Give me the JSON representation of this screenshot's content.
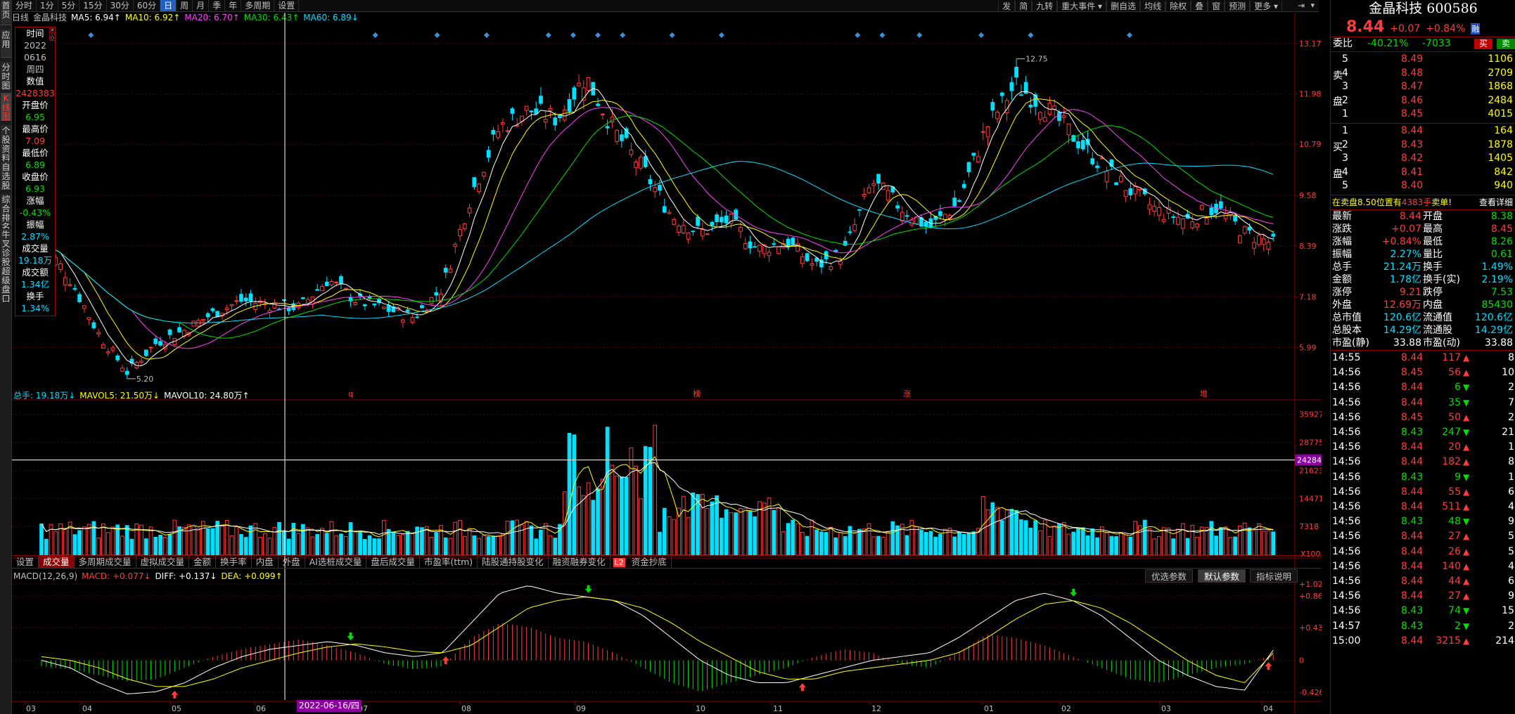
{
  "side_tabs": [
    "首页",
    "应用",
    "分时图",
    "K线图",
    "个股资料",
    "自选股",
    "综合排名",
    "牛叉诊股",
    "超级盘口"
  ],
  "toolbar": {
    "periods": [
      "分时",
      "1分",
      "5分",
      "15分",
      "30分",
      "60分",
      "日",
      "周",
      "月",
      "季",
      "年",
      "多周期",
      "设置"
    ],
    "selected": "日",
    "right_tools": [
      "发",
      "简",
      "九转",
      "重大事件 ▾",
      "删自选",
      "均线",
      "除权",
      "叠",
      "窗",
      "预测",
      "更多 ▾"
    ]
  },
  "ma_legend": {
    "period": "日线",
    "name": "金晶科技",
    "items": [
      {
        "label": "MA5: 6.94↑",
        "color": "#ffffff"
      },
      {
        "label": "MA10: 6.92↑",
        "color": "#ffff00"
      },
      {
        "label": "MA20: 6.70↑",
        "color": "#ff40ff"
      },
      {
        "label": "MA30: 6.43↑",
        "color": "#00e000"
      },
      {
        "label": "MA60: 6.89↓",
        "color": "#00e0ff"
      }
    ]
  },
  "data_window": [
    {
      "text": "时间",
      "color": "#ffffff"
    },
    {
      "text": "2022",
      "color": "#c0c0c0"
    },
    {
      "text": "0616",
      "color": "#c0c0c0"
    },
    {
      "text": "周四",
      "color": "#c0c0c0"
    },
    {
      "text": "数值",
      "color": "#ffffff"
    },
    {
      "text": "2428383",
      "color": "#ff3c3c"
    },
    {
      "text": "开盘价",
      "color": "#ffffff"
    },
    {
      "text": "6.95",
      "color": "#00e000"
    },
    {
      "text": "最高价",
      "color": "#ffffff"
    },
    {
      "text": "7.09",
      "color": "#ff3c3c"
    },
    {
      "text": "最低价",
      "color": "#ffffff"
    },
    {
      "text": "6.89",
      "color": "#00e000"
    },
    {
      "text": "收盘价",
      "color": "#ffffff"
    },
    {
      "text": "6.93",
      "color": "#00e000"
    },
    {
      "text": "涨幅",
      "color": "#ffffff"
    },
    {
      "text": "-0.43%",
      "color": "#00e000"
    },
    {
      "text": "振幅",
      "color": "#ffffff"
    },
    {
      "text": "2.87%",
      "color": "#00e0ff"
    },
    {
      "text": "成交量",
      "color": "#ffffff"
    },
    {
      "text": "19.18万",
      "color": "#00e0ff"
    },
    {
      "text": "成交额",
      "color": "#ffffff"
    },
    {
      "text": "1.34亿",
      "color": "#00e0ff"
    },
    {
      "text": "换手",
      "color": "#ffffff"
    },
    {
      "text": "1.34%",
      "color": "#00e0ff"
    }
  ],
  "price_axis": [
    "13.17",
    "11.98",
    "10.79",
    "9.58",
    "8.39",
    "7.18",
    "5.99"
  ],
  "price_marks": {
    "high": "12.75",
    "low": "5.20"
  },
  "event_marks": [
    "q",
    "榜",
    "涨",
    "增"
  ],
  "vol_legend": {
    "items": [
      {
        "label": "总手: 19.18万↓",
        "color": "#00e0ff"
      },
      {
        "label": "MAVOL5: 21.50万↓",
        "color": "#ffff00"
      },
      {
        "label": "MAVOL10: 24.80万↑",
        "color": "#ffffff"
      }
    ]
  },
  "vol_axis": [
    "35927",
    "28775",
    "21623",
    "14471",
    "7318",
    "X100"
  ],
  "vol_cursor": "24284",
  "ind_tabs": [
    "设置",
    "成交量",
    "多周期成交量",
    "虚拟成交量",
    "金额",
    "换手率",
    "内盘",
    "外盘",
    "AI选桩成交量",
    "盘后成交量",
    "市盈率(ttm)",
    "陆股通持股变化",
    "融资融券变化",
    "资金抄底"
  ],
  "ind_selected": "成交量",
  "ind_badge": "L2",
  "macd_buttons": [
    "优选参数",
    "默认参数",
    "指标说明"
  ],
  "macd_selected_button": "默认参数",
  "macd_legend": {
    "items": [
      {
        "label": "MACD(12,26,9)",
        "color": "#c0c0c0"
      },
      {
        "label": "MACD: +0.077↓",
        "color": "#ff3c3c"
      },
      {
        "label": "DIFF: +0.137↓",
        "color": "#ffffff"
      },
      {
        "label": "DEA: +0.099↑",
        "color": "#ffff00"
      }
    ]
  },
  "macd_axis": [
    "+1.02",
    "+0.863",
    "+0.437",
    "0",
    "-0.426"
  ],
  "date_axis": [
    "03",
    "04",
    "05",
    "06",
    "07",
    "08",
    "09",
    "10",
    "11",
    "12",
    "01",
    "02",
    "03",
    "04"
  ],
  "cursor_date": "2022-06-16/四",
  "quote": {
    "name": "金晶科技 600586",
    "price": "8.44",
    "change": "+0.07",
    "change_pct": "+0.84%",
    "tag": "融",
    "weibi_label": "委比",
    "weibi": "-40.21%",
    "weicha": "-7033",
    "buy_btn": "买",
    "sell_btn": "卖",
    "sell": [
      {
        "lv": "5",
        "price": "8.49",
        "vol": "1106"
      },
      {
        "lv": "4",
        "price": "8.48",
        "vol": "2709"
      },
      {
        "lv": "3",
        "price": "8.47",
        "vol": "1868"
      },
      {
        "lv": "2",
        "price": "8.46",
        "vol": "2484"
      },
      {
        "lv": "1",
        "price": "8.45",
        "vol": "4015"
      }
    ],
    "sell_side": [
      "卖",
      "盘"
    ],
    "buy": [
      {
        "lv": "1",
        "price": "8.44",
        "vol": "164"
      },
      {
        "lv": "2",
        "price": "8.43",
        "vol": "1878"
      },
      {
        "lv": "3",
        "price": "8.42",
        "vol": "1405"
      },
      {
        "lv": "4",
        "price": "8.41",
        "vol": "842"
      },
      {
        "lv": "5",
        "price": "8.40",
        "vol": "940"
      }
    ],
    "buy_side": [
      "买",
      "盘"
    ],
    "notice": {
      "pre": "在卖盘",
      "price": "8.50",
      "mid": "位置有",
      "vol": "4383手",
      "post": "卖单!",
      "link": "查看详细"
    },
    "stats": [
      {
        "l1": "最新",
        "v1": "8.44",
        "c1": "#ff3c3c",
        "l2": "开盘",
        "v2": "8.38",
        "c2": "#00e000"
      },
      {
        "l1": "涨跌",
        "v1": "+0.07",
        "c1": "#ff3c3c",
        "l2": "最高",
        "v2": "8.45",
        "c2": "#ff3c3c"
      },
      {
        "l1": "涨幅",
        "v1": "+0.84%",
        "c1": "#ff3c3c",
        "l2": "最低",
        "v2": "8.26",
        "c2": "#00e000"
      },
      {
        "l1": "振幅",
        "v1": "2.27%",
        "c1": "#00e0ff",
        "l2": "量比",
        "v2": "0.61",
        "c2": "#00e000"
      },
      {
        "l1": "总手",
        "v1": "21.24万",
        "c1": "#00e0ff",
        "l2": "换手",
        "v2": "1.49%",
        "c2": "#00e0ff"
      },
      {
        "l1": "金额",
        "v1": "1.78亿",
        "c1": "#00e0ff",
        "l2": "换手(实)",
        "v2": "2.19%",
        "c2": "#00e0ff"
      },
      {
        "l1": "涨停",
        "v1": "9.21",
        "c1": "#ff3c3c",
        "l2": "跌停",
        "v2": "7.53",
        "c2": "#00e000"
      },
      {
        "l1": "外盘",
        "v1": "12.69万",
        "c1": "#ff3c3c",
        "l2": "内盘",
        "v2": "85430",
        "c2": "#00e000"
      },
      {
        "l1": "总市值",
        "v1": "120.6亿",
        "c1": "#00e0ff",
        "l2": "流通值",
        "v2": "120.6亿",
        "c2": "#00e0ff"
      },
      {
        "l1": "总股本",
        "v1": "14.29亿",
        "c1": "#00e0ff",
        "l2": "流通股",
        "v2": "14.29亿",
        "c2": "#00e0ff"
      },
      {
        "l1": "市盈(静)",
        "v1": "33.88",
        "c1": "#ffffff",
        "l2": "市盈(动)",
        "v2": "33.88",
        "c2": "#ffffff"
      }
    ],
    "ticks": [
      {
        "t": "14:55",
        "p": "8.44",
        "pc": "#ff3c3c",
        "v": "117",
        "d": "up",
        "n": "8"
      },
      {
        "t": "14:56",
        "p": "8.45",
        "pc": "#ff3c3c",
        "v": "56",
        "d": "up",
        "n": "10"
      },
      {
        "t": "14:56",
        "p": "8.44",
        "pc": "#ff3c3c",
        "v": "6",
        "d": "down",
        "n": "2"
      },
      {
        "t": "14:56",
        "p": "8.44",
        "pc": "#ff3c3c",
        "v": "35",
        "d": "down",
        "n": "7"
      },
      {
        "t": "14:56",
        "p": "8.45",
        "pc": "#ff3c3c",
        "v": "50",
        "d": "up",
        "n": "2"
      },
      {
        "t": "14:56",
        "p": "8.43",
        "pc": "#00e000",
        "v": "247",
        "d": "down",
        "n": "21"
      },
      {
        "t": "14:56",
        "p": "8.44",
        "pc": "#ff3c3c",
        "v": "20",
        "d": "up",
        "n": "1"
      },
      {
        "t": "14:56",
        "p": "8.44",
        "pc": "#ff3c3c",
        "v": "182",
        "d": "up",
        "n": "8"
      },
      {
        "t": "14:56",
        "p": "8.43",
        "pc": "#00e000",
        "v": "9",
        "d": "down",
        "n": "1"
      },
      {
        "t": "14:56",
        "p": "8.44",
        "pc": "#ff3c3c",
        "v": "55",
        "d": "up",
        "n": "6"
      },
      {
        "t": "14:56",
        "p": "8.44",
        "pc": "#ff3c3c",
        "v": "511",
        "d": "up",
        "n": "4"
      },
      {
        "t": "14:56",
        "p": "8.43",
        "pc": "#00e000",
        "v": "48",
        "d": "down",
        "n": "9"
      },
      {
        "t": "14:56",
        "p": "8.44",
        "pc": "#ff3c3c",
        "v": "27",
        "d": "up",
        "n": "5"
      },
      {
        "t": "14:56",
        "p": "8.44",
        "pc": "#ff3c3c",
        "v": "26",
        "d": "up",
        "n": "5"
      },
      {
        "t": "14:56",
        "p": "8.44",
        "pc": "#ff3c3c",
        "v": "140",
        "d": "up",
        "n": "4"
      },
      {
        "t": "14:56",
        "p": "8.44",
        "pc": "#ff3c3c",
        "v": "44",
        "d": "up",
        "n": "6"
      },
      {
        "t": "14:56",
        "p": "8.44",
        "pc": "#ff3c3c",
        "v": "27",
        "d": "up",
        "n": "9"
      },
      {
        "t": "14:56",
        "p": "8.43",
        "pc": "#00e000",
        "v": "74",
        "d": "down",
        "n": "15"
      },
      {
        "t": "14:57",
        "p": "8.43",
        "pc": "#00e000",
        "v": "2",
        "d": "down",
        "n": "2"
      },
      {
        "t": "15:00",
        "p": "8.44",
        "pc": "#ff3c3c",
        "v": "3215",
        "d": "up",
        "n": "214"
      }
    ]
  },
  "colors": {
    "up": "#ff3c3c",
    "down": "#00e0ff",
    "down_num": "#00e000",
    "frame": "#8c0000"
  },
  "chart_data": {
    "type": "candlestick",
    "price_ylim": [
      4.8,
      13.6
    ],
    "vol_ylim": [
      0,
      38000
    ],
    "macd_ylim": [
      -0.53,
      1.05
    ],
    "candles_ohlc_sample": [
      [
        8.3,
        8.7,
        8.1,
        8.5
      ],
      [
        8.5,
        8.6,
        7.5,
        7.6
      ],
      [
        7.6,
        7.7,
        6.2,
        6.3
      ],
      [
        6.3,
        6.4,
        5.2,
        5.4
      ],
      [
        5.4,
        6.2,
        5.3,
        6.1
      ],
      [
        6.1,
        6.5,
        6.0,
        6.4
      ],
      [
        6.4,
        6.9,
        6.3,
        6.8
      ],
      [
        6.8,
        7.3,
        6.7,
        7.1
      ],
      [
        7.1,
        7.3,
        6.9,
        7.0
      ],
      [
        6.95,
        7.09,
        6.89,
        6.93
      ],
      [
        6.9,
        7.9,
        6.8,
        7.6
      ],
      [
        7.6,
        7.7,
        7.0,
        7.1
      ],
      [
        7.0,
        7.2,
        6.8,
        6.9
      ],
      [
        6.8,
        6.9,
        6.6,
        6.7
      ],
      [
        6.7,
        7.5,
        6.6,
        7.4
      ],
      [
        7.4,
        9.8,
        7.3,
        9.6
      ],
      [
        9.6,
        11.5,
        9.4,
        11.2
      ],
      [
        11.2,
        11.9,
        10.8,
        11.6
      ],
      [
        11.6,
        12.1,
        11.2,
        11.4
      ],
      [
        11.4,
        12.75,
        11.3,
        12.4
      ],
      [
        12.4,
        12.5,
        10.9,
        11.1
      ],
      [
        11.1,
        11.2,
        10.0,
        10.2
      ],
      [
        10.2,
        10.4,
        9.0,
        9.1
      ],
      [
        9.1,
        9.3,
        8.4,
        8.7
      ],
      [
        8.7,
        9.2,
        8.5,
        9.0
      ],
      [
        9.0,
        9.1,
        8.2,
        8.3
      ],
      [
        8.3,
        8.7,
        8.0,
        8.5
      ],
      [
        8.5,
        8.6,
        7.8,
        7.9
      ],
      [
        7.9,
        8.4,
        7.7,
        8.2
      ],
      [
        8.2,
        10.1,
        8.1,
        9.9
      ],
      [
        9.9,
        10.0,
        9.1,
        9.3
      ],
      [
        9.3,
        9.4,
        8.6,
        8.8
      ],
      [
        8.8,
        9.5,
        8.7,
        9.4
      ],
      [
        9.4,
        11.5,
        9.3,
        11.2
      ],
      [
        11.2,
        12.6,
        11.0,
        12.2
      ],
      [
        12.2,
        12.3,
        11.6,
        11.7
      ],
      [
        11.7,
        11.8,
        10.8,
        11.0
      ],
      [
        11.0,
        11.1,
        10.2,
        10.3
      ],
      [
        10.3,
        10.5,
        9.5,
        9.7
      ],
      [
        9.7,
        9.8,
        9.1,
        9.2
      ],
      [
        9.2,
        9.4,
        8.8,
        9.0
      ],
      [
        9.0,
        9.6,
        8.9,
        9.3
      ],
      [
        9.3,
        9.4,
        8.6,
        8.7
      ],
      [
        8.7,
        8.8,
        8.26,
        8.44
      ]
    ],
    "macd_hist_sample": [
      -0.08,
      -0.12,
      -0.2,
      -0.28,
      -0.25,
      -0.1,
      0.05,
      0.15,
      0.22,
      0.28,
      0.2,
      0.1,
      -0.05,
      -0.12,
      -0.08,
      0.3,
      0.5,
      0.45,
      0.3,
      0.25,
      0.1,
      -0.1,
      -0.3,
      -0.42,
      -0.3,
      -0.2,
      -0.1,
      0.05,
      0.15,
      0.1,
      -0.05,
      -0.1,
      0.1,
      0.35,
      0.3,
      0.2,
      0.05,
      -0.1,
      -0.25,
      -0.3,
      -0.2,
      -0.1,
      -0.05,
      0.077
    ],
    "diff_sample": [
      0.0,
      -0.1,
      -0.3,
      -0.45,
      -0.42,
      -0.3,
      -0.1,
      0.05,
      0.15,
      0.2,
      0.25,
      0.2,
      0.1,
      0.05,
      0.1,
      0.5,
      0.9,
      1.0,
      0.9,
      0.85,
      0.8,
      0.6,
      0.3,
      0.0,
      -0.2,
      -0.3,
      -0.3,
      -0.2,
      -0.1,
      0.0,
      0.05,
      0.1,
      0.3,
      0.55,
      0.8,
      0.9,
      0.8,
      0.6,
      0.3,
      0.0,
      -0.2,
      -0.35,
      -0.4,
      0.137
    ],
    "dea_sample": [
      0.05,
      0.0,
      -0.1,
      -0.25,
      -0.35,
      -0.35,
      -0.25,
      -0.1,
      0.0,
      0.1,
      0.18,
      0.22,
      0.18,
      0.12,
      0.1,
      0.2,
      0.45,
      0.7,
      0.8,
      0.85,
      0.8,
      0.7,
      0.5,
      0.25,
      0.05,
      -0.15,
      -0.25,
      -0.25,
      -0.15,
      -0.1,
      -0.05,
      0.0,
      0.1,
      0.3,
      0.55,
      0.75,
      0.8,
      0.7,
      0.5,
      0.25,
      0.0,
      -0.2,
      -0.3,
      0.099
    ]
  }
}
